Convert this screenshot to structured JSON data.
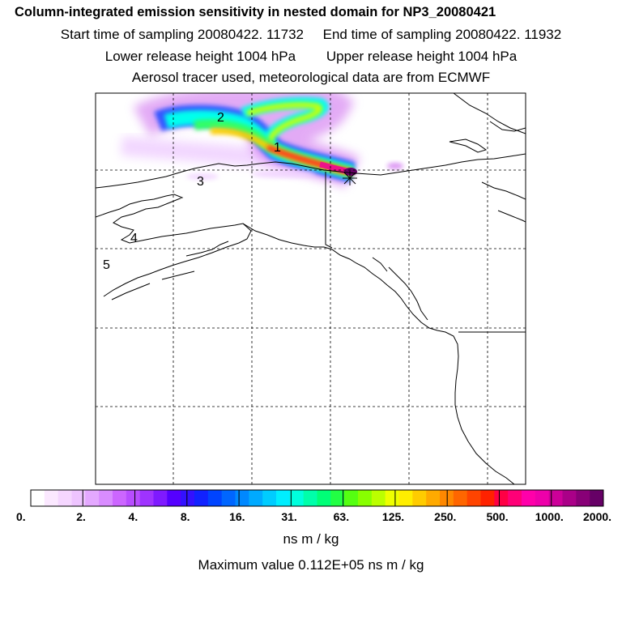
{
  "header": {
    "title": "Column-integrated emission sensitivity in nested domain for NP3_20080421",
    "start_time": "Start time of sampling 20080422. 11732",
    "end_time": "End time of sampling 20080422. 11932",
    "lower_height": "Lower release height 1004 hPa",
    "upper_height": "Upper release height 1004 hPa",
    "aerosol": "Aerosol tracer used, meteorological data are from ECMWF"
  },
  "map": {
    "age_labels": [
      "1",
      "2",
      "3",
      "4",
      "5"
    ],
    "release_marker": "asterisk-icon",
    "plume_colors": [
      "#f0d0ff",
      "#cc66ee",
      "#3355ff",
      "#00ffee",
      "#33ff66",
      "#ccff00",
      "#ffcc00",
      "#ff2222",
      "#ee1188",
      "#660066"
    ]
  },
  "colorbar": {
    "ticks": [
      "0.",
      "2.",
      "4.",
      "8.",
      "16.",
      "31.",
      "63.",
      "125.",
      "250.",
      "500.",
      "1000.",
      "2000."
    ],
    "colors": [
      "#ffffff",
      "#fbe8ff",
      "#f5d6ff",
      "#eec4ff",
      "#e4a8ff",
      "#d98cff",
      "#cc66ff",
      "#b84dff",
      "#9f33ff",
      "#7f1aff",
      "#5500ff",
      "#3311ff",
      "#1122ff",
      "#0044ff",
      "#0066ff",
      "#0088ff",
      "#00aaff",
      "#00ccff",
      "#00eeff",
      "#00ffdd",
      "#00ffaa",
      "#00ff77",
      "#22ff44",
      "#55ff11",
      "#88ff00",
      "#bbff00",
      "#eeff00",
      "#ffee00",
      "#ffcc00",
      "#ffaa00",
      "#ff8800",
      "#ff6600",
      "#ff4400",
      "#ff2200",
      "#ff0044",
      "#ff0077",
      "#ff00aa",
      "#ee00aa",
      "#cc0099",
      "#aa0088",
      "#880077",
      "#660066"
    ],
    "unit": "ns m / kg",
    "max_value": "Maximum value  0.112E+05 ns m / kg"
  }
}
